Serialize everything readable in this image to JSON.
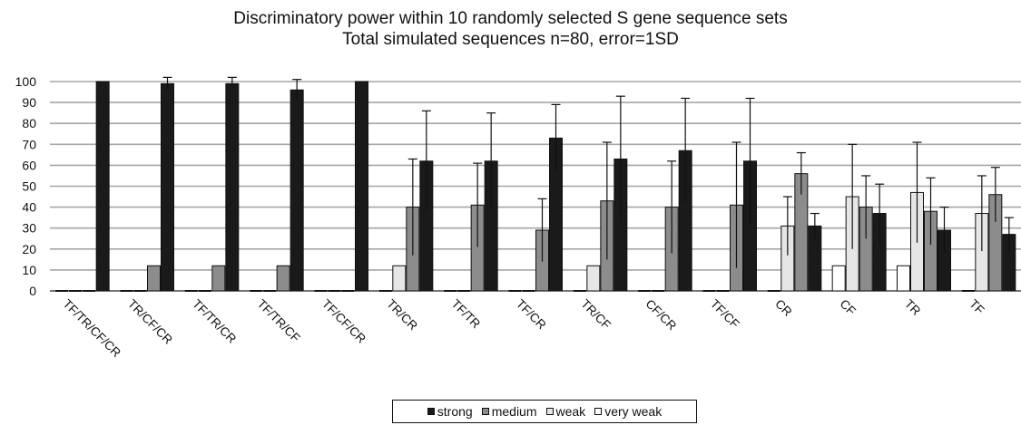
{
  "chart_data": {
    "type": "bar",
    "title": "Discriminatory power within 10 randomly selected S gene sequence sets",
    "subtitle": "Total simulated sequences n=80, error=1SD",
    "ylim": [
      0,
      100
    ],
    "yticks": [
      0,
      10,
      20,
      30,
      40,
      50,
      60,
      70,
      80,
      90,
      100
    ],
    "grid": true,
    "legend_position": "bottom",
    "categories": [
      "TF/TR/CF/CR",
      "TR/CF/CR",
      "TF/TR/CR",
      "TF/TR/CF",
      "TF/CF/CR",
      "TR/CR",
      "TF/TR",
      "TF/CR",
      "TR/CF",
      "CF/CR",
      "TF/CF",
      "CR",
      "CF",
      "TR",
      "TF"
    ],
    "series": [
      {
        "name": "very weak",
        "color": "#ffffff",
        "values": [
          0,
          0,
          0,
          0,
          0,
          0,
          0,
          0,
          0,
          0,
          0,
          0,
          12,
          12,
          0
        ],
        "errors": [
          0,
          0,
          0,
          0,
          0,
          0,
          0,
          0,
          0,
          0,
          0,
          0,
          0,
          0,
          0
        ]
      },
      {
        "name": "weak",
        "color": "#e6e6e6",
        "values": [
          0,
          0,
          0,
          0,
          0,
          12,
          0,
          0,
          12,
          0,
          0,
          31,
          45,
          47,
          37
        ],
        "errors": [
          0,
          0,
          0,
          0,
          0,
          0,
          0,
          0,
          0,
          0,
          0,
          14,
          25,
          24,
          18
        ]
      },
      {
        "name": "medium",
        "color": "#8c8c8c",
        "values": [
          0,
          12,
          12,
          12,
          0,
          40,
          41,
          29,
          43,
          40,
          41,
          56,
          40,
          38,
          46
        ],
        "errors": [
          0,
          0,
          0,
          0,
          0,
          23,
          20,
          15,
          28,
          22,
          30,
          10,
          15,
          16,
          13
        ]
      },
      {
        "name": "strong",
        "color": "#1a1a1a",
        "values": [
          100,
          99,
          99,
          96,
          100,
          62,
          62,
          73,
          63,
          67,
          62,
          31,
          37,
          29,
          27
        ],
        "errors": [
          0,
          3,
          3,
          5,
          0,
          24,
          23,
          16,
          30,
          25,
          30,
          6,
          14,
          11,
          8
        ]
      }
    ]
  },
  "legend": [
    {
      "label": "strong",
      "color": "#1a1a1a"
    },
    {
      "label": "medium",
      "color": "#8c8c8c"
    },
    {
      "label": "weak",
      "color": "#e6e6e6"
    },
    {
      "label": "very weak",
      "color": "#ffffff"
    }
  ]
}
